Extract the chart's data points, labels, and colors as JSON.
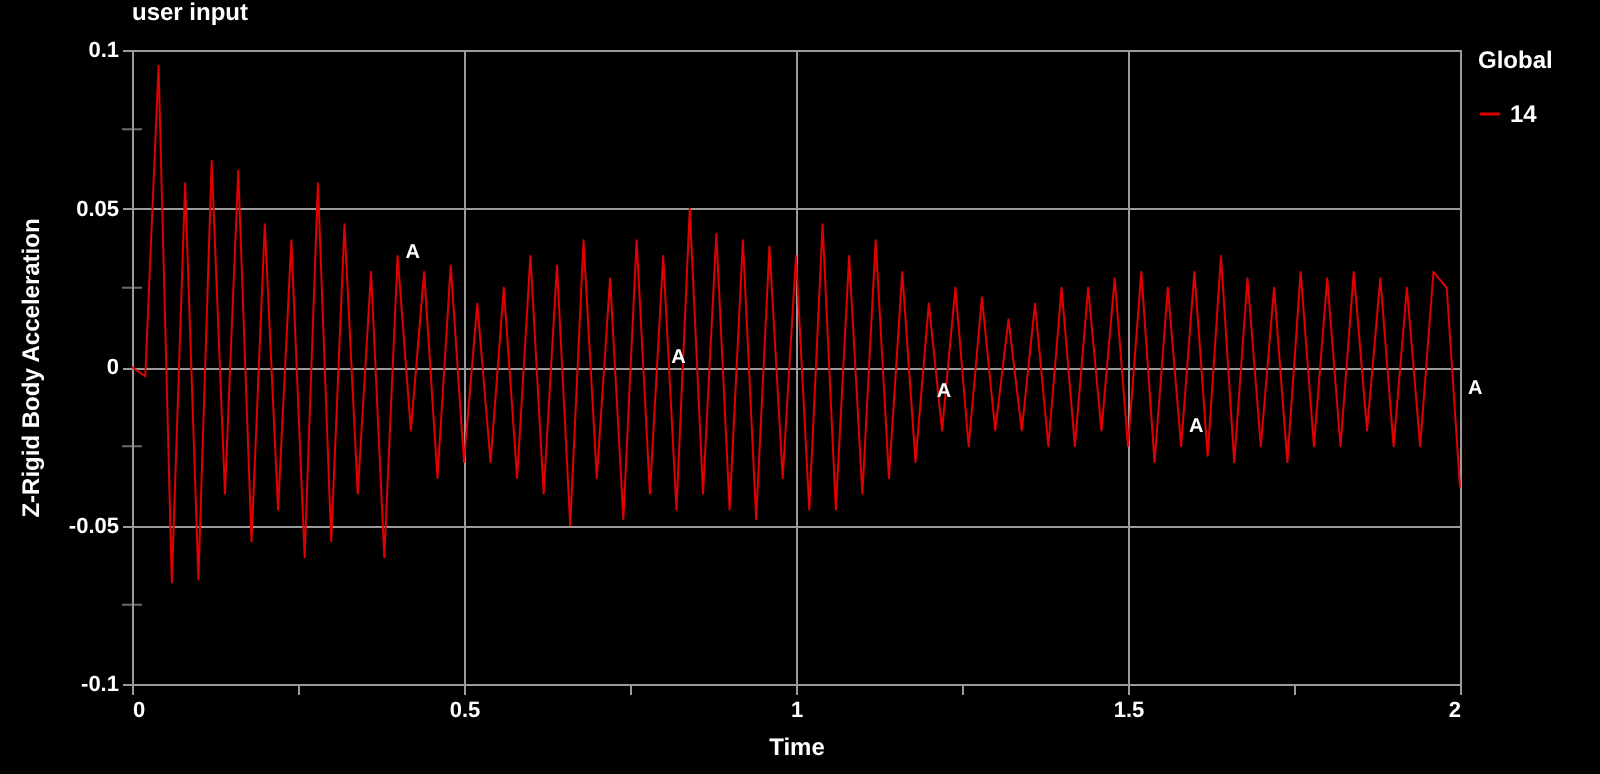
{
  "chart_data": {
    "type": "line",
    "title": "user input",
    "xlabel": "Time",
    "ylabel": "Z-Rigid Body Acceleration",
    "legend_title": "Global",
    "x": [
      0,
      0.02,
      0.04,
      0.06,
      0.08,
      0.1,
      0.12,
      0.14,
      0.16,
      0.18,
      0.2,
      0.22,
      0.24,
      0.26,
      0.28,
      0.3,
      0.32,
      0.34,
      0.36,
      0.38,
      0.4,
      0.42,
      0.44,
      0.46,
      0.48,
      0.5,
      0.52,
      0.54,
      0.56,
      0.58,
      0.6,
      0.62,
      0.64,
      0.66,
      0.68,
      0.7,
      0.72,
      0.74,
      0.76,
      0.78,
      0.8,
      0.82,
      0.84,
      0.86,
      0.88,
      0.9,
      0.92,
      0.94,
      0.96,
      0.98,
      1,
      1.02,
      1.04,
      1.06,
      1.08,
      1.1,
      1.12,
      1.14,
      1.16,
      1.18,
      1.2,
      1.22,
      1.24,
      1.26,
      1.28,
      1.3,
      1.32,
      1.34,
      1.36,
      1.38,
      1.4,
      1.42,
      1.44,
      1.46,
      1.48,
      1.5,
      1.52,
      1.54,
      1.56,
      1.58,
      1.6,
      1.62,
      1.64,
      1.66,
      1.68,
      1.7,
      1.72,
      1.74,
      1.76,
      1.78,
      1.8,
      1.82,
      1.84,
      1.86,
      1.88,
      1.9,
      1.92,
      1.94,
      1.96,
      1.98,
      2
    ],
    "series": [
      {
        "name": "14",
        "color": "#e00000",
        "values": [
          0,
          -0.003,
          0.095,
          -0.068,
          0.058,
          -0.067,
          0.065,
          -0.04,
          0.062,
          -0.055,
          0.045,
          -0.045,
          0.04,
          -0.06,
          0.058,
          -0.055,
          0.045,
          -0.04,
          0.03,
          -0.06,
          0.035,
          -0.02,
          0.03,
          -0.035,
          0.032,
          -0.03,
          0.02,
          -0.03,
          0.025,
          -0.035,
          0.035,
          -0.04,
          0.032,
          -0.05,
          0.04,
          -0.035,
          0.028,
          -0.048,
          0.04,
          -0.04,
          0.035,
          -0.045,
          0.05,
          -0.04,
          0.042,
          -0.045,
          0.04,
          -0.048,
          0.038,
          -0.035,
          0.035,
          -0.045,
          0.045,
          -0.045,
          0.035,
          -0.04,
          0.04,
          -0.035,
          0.03,
          -0.03,
          0.02,
          -0.02,
          0.025,
          -0.025,
          0.022,
          -0.02,
          0.015,
          -0.02,
          0.02,
          -0.025,
          0.025,
          -0.025,
          0.025,
          -0.02,
          0.028,
          -0.025,
          0.03,
          -0.03,
          0.025,
          -0.025,
          0.03,
          -0.028,
          0.035,
          -0.03,
          0.028,
          -0.025,
          0.025,
          -0.03,
          0.03,
          -0.025,
          0.028,
          -0.025,
          0.03,
          -0.02,
          0.028,
          -0.025,
          0.025,
          -0.025,
          0.03,
          0.025,
          -0.038
        ]
      }
    ],
    "annotations": [
      {
        "text": "A",
        "x": 0.4,
        "y": 0.03
      },
      {
        "text": "A",
        "x": 0.8,
        "y": -0.003
      },
      {
        "text": "A",
        "x": 1.2,
        "y": -0.014
      },
      {
        "text": "A",
        "x": 1.58,
        "y": -0.025
      },
      {
        "text": "A",
        "x": 2,
        "y": -0.013
      }
    ],
    "xlim": [
      0,
      2
    ],
    "xticks": [
      0,
      {
        "value": 0.25,
        "label": null
      },
      0.5,
      {
        "value": 0.75,
        "label": null
      },
      1,
      {
        "value": 1.25,
        "label": null
      },
      1.5,
      {
        "value": 1.75,
        "label": null
      },
      2
    ],
    "ylim": [
      -0.1,
      0.1
    ],
    "yticks": [
      -0.1,
      {
        "value": -0.075,
        "label": null
      },
      -0.05,
      {
        "value": -0.025,
        "label": null
      },
      0,
      {
        "value": 0.025,
        "label": null
      },
      0.05,
      {
        "value": 0.075,
        "label": null
      },
      0.1
    ],
    "grid": true,
    "legend": "top right",
    "marker": "none",
    "line_style": "solid"
  }
}
